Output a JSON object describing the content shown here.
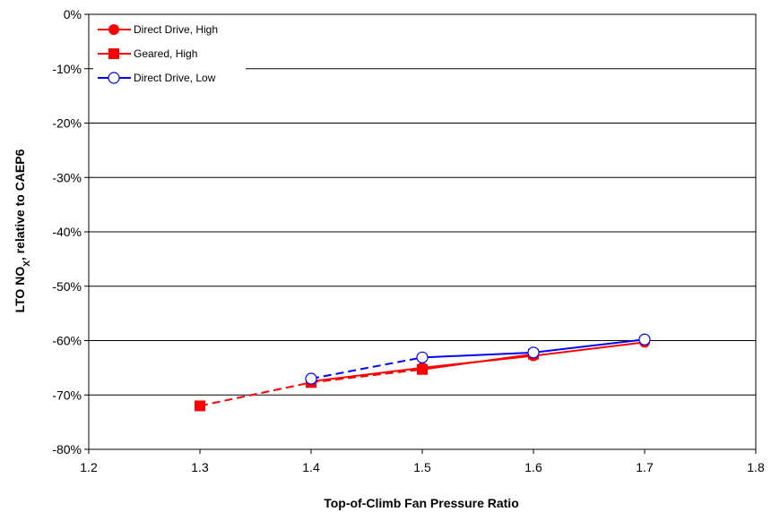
{
  "chart_data": {
    "type": "line",
    "xlabel": "Top-of-Climb Fan Pressure Ratio",
    "ylabel": "LTO NOX, relative to CAEP6",
    "ylabel_parts": {
      "main": "LTO NO",
      "sub": "X",
      "rest": ", relative to CAEP6"
    },
    "xlim": [
      1.2,
      1.8
    ],
    "ylim": [
      -80,
      0
    ],
    "x_ticks": [
      1.2,
      1.3,
      1.4,
      1.5,
      1.6,
      1.7,
      1.8
    ],
    "x_tick_labels": [
      "1.2",
      "1.3",
      "1.4",
      "1.5",
      "1.6",
      "1.7",
      "1.8"
    ],
    "y_ticks": [
      0,
      -10,
      -20,
      -30,
      -40,
      -50,
      -60,
      -70,
      -80
    ],
    "y_tick_labels": [
      "0%",
      "-10%",
      "-20%",
      "-30%",
      "-40%",
      "-50%",
      "-60%",
      "-70%",
      "-80%"
    ],
    "grid": "horizontal",
    "legend_position": "top-left",
    "series": [
      {
        "name": "Direct Drive, High",
        "color": "#ff0000",
        "marker": "filled-circle",
        "x": [
          1.4,
          1.5,
          1.6,
          1.7
        ],
        "y": [
          -67.5,
          -65.0,
          -62.8,
          -60.3
        ],
        "dashed_x": [],
        "dashed_y": []
      },
      {
        "name": "Geared, High",
        "color": "#ff0000",
        "marker": "filled-square",
        "x": [
          1.3,
          1.4,
          1.5,
          1.6
        ],
        "y": [
          -72.0,
          -67.7,
          -65.3,
          -62.5
        ],
        "dashed_x": [
          1.3,
          1.4,
          1.5
        ],
        "dashed_y": [
          -72.0,
          -67.7,
          -65.3
        ]
      },
      {
        "name": "Direct Drive, Low",
        "color": "#0000ff",
        "marker": "open-circle",
        "x": [
          1.4,
          1.5,
          1.6,
          1.7
        ],
        "y": [
          -67.0,
          -63.1,
          -62.2,
          -59.8
        ],
        "dashed_x": [
          1.4,
          1.5
        ],
        "dashed_y": [
          -67.0,
          -63.1
        ]
      }
    ]
  }
}
